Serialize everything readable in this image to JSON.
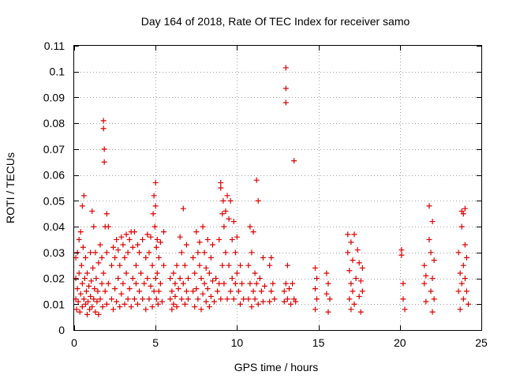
{
  "chart_data": {
    "type": "scatter",
    "title": "Day 164 of 2018, Rate Of TEC Index for receiver samo",
    "xlabel": "GPS time / hours",
    "ylabel": "ROTI / TECUs",
    "xlim": [
      0,
      25
    ],
    "ylim": [
      0,
      0.11
    ],
    "x_ticks": [
      "0",
      "5",
      "10",
      "15",
      "20",
      "25"
    ],
    "y_ticks": [
      "0",
      "0.01",
      "0.02",
      "0.03",
      "0.04",
      "0.05",
      "0.06",
      "0.07",
      "0.08",
      "0.09",
      "0.1",
      "0.11"
    ],
    "grid": true,
    "marker": "plus",
    "color": "#e00000",
    "series": [
      {
        "name": "",
        "points": [
          [
            0.1,
            0.012
          ],
          [
            0.1,
            0.02
          ],
          [
            0.1,
            0.028
          ],
          [
            0.15,
            0.008
          ],
          [
            0.2,
            0.016
          ],
          [
            0.2,
            0.03
          ],
          [
            0.25,
            0.011
          ],
          [
            0.3,
            0.022
          ],
          [
            0.3,
            0.035
          ],
          [
            0.35,
            0.007
          ],
          [
            0.4,
            0.014
          ],
          [
            0.4,
            0.038
          ],
          [
            0.45,
            0.025
          ],
          [
            0.5,
            0.009
          ],
          [
            0.5,
            0.018
          ],
          [
            0.5,
            0.048
          ],
          [
            0.55,
            0.032
          ],
          [
            0.6,
            0.012
          ],
          [
            0.6,
            0.052
          ],
          [
            0.65,
            0.02
          ],
          [
            0.7,
            0.01
          ],
          [
            0.7,
            0.028
          ],
          [
            0.75,
            0.015
          ],
          [
            0.8,
            0.006
          ],
          [
            0.8,
            0.022
          ],
          [
            0.85,
            0.011
          ],
          [
            0.9,
            0.017
          ],
          [
            0.95,
            0.008
          ],
          [
            1.0,
            0.013
          ],
          [
            1.0,
            0.03
          ],
          [
            1.05,
            0.019
          ],
          [
            1.1,
            0.009
          ],
          [
            1.1,
            0.046
          ],
          [
            1.15,
            0.024
          ],
          [
            1.2,
            0.012
          ],
          [
            1.2,
            0.04
          ],
          [
            1.25,
            0.016
          ],
          [
            1.3,
            0.007
          ],
          [
            1.3,
            0.03
          ],
          [
            1.35,
            0.02
          ],
          [
            1.4,
            0.011
          ],
          [
            1.45,
            0.015
          ],
          [
            1.5,
            0.006
          ],
          [
            1.5,
            0.026
          ],
          [
            1.6,
            0.012
          ],
          [
            1.6,
            0.033
          ],
          [
            1.7,
            0.018
          ],
          [
            1.7,
            0.028
          ],
          [
            1.75,
            0.009
          ],
          [
            1.8,
            0.078
          ],
          [
            1.8,
            0.081
          ],
          [
            1.85,
            0.07
          ],
          [
            1.85,
            0.065
          ],
          [
            1.8,
            0.022
          ],
          [
            1.9,
            0.015
          ],
          [
            1.9,
            0.04
          ],
          [
            2.0,
            0.01
          ],
          [
            2.0,
            0.045
          ],
          [
            2.0,
            0.03
          ],
          [
            2.1,
            0.018
          ],
          [
            2.1,
            0.04
          ],
          [
            2.3,
            0.012
          ],
          [
            2.3,
            0.025
          ],
          [
            2.4,
            0.008
          ],
          [
            2.4,
            0.032
          ],
          [
            2.5,
            0.016
          ],
          [
            2.5,
            0.028
          ],
          [
            2.6,
            0.011
          ],
          [
            2.6,
            0.035
          ],
          [
            2.7,
            0.02
          ],
          [
            2.7,
            0.031
          ],
          [
            2.8,
            0.009
          ],
          [
            2.8,
            0.025
          ],
          [
            2.9,
            0.014
          ],
          [
            2.9,
            0.036
          ],
          [
            3.0,
            0.018
          ],
          [
            3.0,
            0.033
          ],
          [
            3.1,
            0.01
          ],
          [
            3.1,
            0.028
          ],
          [
            3.2,
            0.022
          ],
          [
            3.2,
            0.037
          ],
          [
            3.3,
            0.012
          ],
          [
            3.3,
            0.03
          ],
          [
            3.4,
            0.016
          ],
          [
            3.4,
            0.035
          ],
          [
            3.5,
            0.009
          ],
          [
            3.5,
            0.038
          ],
          [
            3.6,
            0.02
          ],
          [
            3.6,
            0.032
          ],
          [
            3.7,
            0.012
          ],
          [
            3.7,
            0.038
          ],
          [
            3.8,
            0.025
          ],
          [
            3.8,
            0.018
          ],
          [
            3.9,
            0.01
          ],
          [
            3.9,
            0.033
          ],
          [
            4.0,
            0.015
          ],
          [
            4.0,
            0.03
          ],
          [
            4.1,
            0.022
          ],
          [
            4.2,
            0.012
          ],
          [
            4.2,
            0.035
          ],
          [
            4.3,
            0.018
          ],
          [
            4.4,
            0.008
          ],
          [
            4.4,
            0.028
          ],
          [
            4.5,
            0.02
          ],
          [
            4.5,
            0.037
          ],
          [
            4.6,
            0.012
          ],
          [
            4.6,
            0.03
          ],
          [
            4.7,
            0.017
          ],
          [
            4.7,
            0.036
          ],
          [
            4.8,
            0.009
          ],
          [
            4.8,
            0.025
          ],
          [
            4.85,
            0.045
          ],
          [
            4.9,
            0.052
          ],
          [
            4.9,
            0.015
          ],
          [
            4.95,
            0.04
          ],
          [
            5.0,
            0.057
          ],
          [
            5.0,
            0.02
          ],
          [
            5.0,
            0.048
          ],
          [
            5.05,
            0.012
          ],
          [
            5.05,
            0.032
          ],
          [
            5.1,
            0.022
          ],
          [
            5.1,
            0.035
          ],
          [
            5.15,
            0.01
          ],
          [
            5.2,
            0.028
          ],
          [
            5.2,
            0.015
          ],
          [
            5.3,
            0.018
          ],
          [
            5.3,
            0.034
          ],
          [
            5.4,
            0.011
          ],
          [
            5.5,
            0.025
          ],
          [
            5.5,
            0.038
          ],
          [
            5.9,
            0.012
          ],
          [
            5.9,
            0.02
          ],
          [
            6.0,
            0.008
          ],
          [
            6.0,
            0.015
          ],
          [
            6.1,
            0.022
          ],
          [
            6.1,
            0.01
          ],
          [
            6.2,
            0.018
          ],
          [
            6.2,
            0.013
          ],
          [
            6.3,
            0.025
          ],
          [
            6.3,
            0.009
          ],
          [
            6.4,
            0.016
          ],
          [
            6.5,
            0.02
          ],
          [
            6.5,
            0.036
          ],
          [
            6.6,
            0.012
          ],
          [
            6.6,
            0.03
          ],
          [
            6.7,
            0.047
          ],
          [
            6.7,
            0.018
          ],
          [
            6.8,
            0.025
          ],
          [
            6.8,
            0.01
          ],
          [
            6.9,
            0.015
          ],
          [
            6.9,
            0.033
          ],
          [
            7.0,
            0.02
          ],
          [
            7.0,
            0.012
          ],
          [
            7.3,
            0.015
          ],
          [
            7.3,
            0.028
          ],
          [
            7.4,
            0.009
          ],
          [
            7.4,
            0.022
          ],
          [
            7.5,
            0.038
          ],
          [
            7.5,
            0.016
          ],
          [
            7.6,
            0.03
          ],
          [
            7.6,
            0.012
          ],
          [
            7.7,
            0.025
          ],
          [
            7.7,
            0.034
          ],
          [
            7.8,
            0.008
          ],
          [
            7.8,
            0.02
          ],
          [
            7.9,
            0.014
          ],
          [
            7.9,
            0.04
          ],
          [
            8.0,
            0.018
          ],
          [
            8.0,
            0.03
          ],
          [
            8.1,
            0.011
          ],
          [
            8.1,
            0.024
          ],
          [
            8.2,
            0.035
          ],
          [
            8.2,
            0.016
          ],
          [
            8.3,
            0.022
          ],
          [
            8.3,
            0.009
          ],
          [
            8.4,
            0.028
          ],
          [
            8.4,
            0.013
          ],
          [
            8.5,
            0.019
          ],
          [
            8.5,
            0.033
          ],
          [
            8.6,
            0.011
          ],
          [
            8.7,
            0.02
          ],
          [
            8.8,
            0.015
          ],
          [
            8.9,
            0.018
          ],
          [
            8.9,
            0.035
          ],
          [
            9.0,
            0.012
          ],
          [
            9.0,
            0.057
          ],
          [
            9.0,
            0.055
          ],
          [
            9.1,
            0.025
          ],
          [
            9.1,
            0.045
          ],
          [
            9.15,
            0.05
          ],
          [
            9.2,
            0.018
          ],
          [
            9.2,
            0.04
          ],
          [
            9.3,
            0.03
          ],
          [
            9.3,
            0.046
          ],
          [
            9.4,
            0.012
          ],
          [
            9.4,
            0.052
          ],
          [
            9.5,
            0.025
          ],
          [
            9.5,
            0.043
          ],
          [
            9.6,
            0.015
          ],
          [
            9.6,
            0.05
          ],
          [
            9.7,
            0.035
          ],
          [
            9.7,
            0.02
          ],
          [
            9.8,
            0.042
          ],
          [
            9.8,
            0.012
          ],
          [
            9.9,
            0.03
          ],
          [
            9.9,
            0.018
          ],
          [
            10.0,
            0.022
          ],
          [
            10.0,
            0.036
          ],
          [
            10.1,
            0.015
          ],
          [
            10.2,
            0.025
          ],
          [
            10.2,
            0.01
          ],
          [
            10.3,
            0.018
          ],
          [
            10.4,
            0.012
          ],
          [
            10.7,
            0.012
          ],
          [
            10.7,
            0.025
          ],
          [
            10.8,
            0.04
          ],
          [
            10.8,
            0.018
          ],
          [
            10.9,
            0.03
          ],
          [
            10.9,
            0.009
          ],
          [
            11.0,
            0.038
          ],
          [
            11.0,
            0.015
          ],
          [
            11.1,
            0.022
          ],
          [
            11.1,
            0.012
          ],
          [
            11.2,
            0.058
          ],
          [
            11.2,
            0.018
          ],
          [
            11.3,
            0.05
          ],
          [
            11.3,
            0.01
          ],
          [
            11.4,
            0.02
          ],
          [
            11.5,
            0.015
          ],
          [
            11.6,
            0.028
          ],
          [
            11.6,
            0.011
          ],
          [
            11.7,
            0.017
          ],
          [
            12.0,
            0.025
          ],
          [
            12.0,
            0.011
          ],
          [
            12.1,
            0.028
          ],
          [
            12.1,
            0.015
          ],
          [
            12.2,
            0.018
          ],
          [
            12.3,
            0.012
          ],
          [
            12.9,
            0.011
          ],
          [
            12.9,
            0.015
          ],
          [
            13.0,
            0.1015
          ],
          [
            13.0,
            0.0935
          ],
          [
            13.0,
            0.088
          ],
          [
            13.0,
            0.018
          ],
          [
            13.1,
            0.025
          ],
          [
            13.1,
            0.012
          ],
          [
            13.2,
            0.016
          ],
          [
            13.3,
            0.01
          ],
          [
            13.4,
            0.018
          ],
          [
            13.5,
            0.0655
          ],
          [
            13.5,
            0.012
          ],
          [
            13.6,
            0.011
          ],
          [
            14.8,
            0.024
          ],
          [
            14.8,
            0.016
          ],
          [
            14.8,
            0.008
          ],
          [
            14.9,
            0.012
          ],
          [
            14.9,
            0.02
          ],
          [
            15.5,
            0.022
          ],
          [
            15.5,
            0.014
          ],
          [
            15.6,
            0.018
          ],
          [
            15.6,
            0.007
          ],
          [
            15.7,
            0.012
          ],
          [
            16.8,
            0.037
          ],
          [
            16.8,
            0.03
          ],
          [
            16.9,
            0.023
          ],
          [
            16.9,
            0.012
          ],
          [
            17.0,
            0.034
          ],
          [
            17.0,
            0.018
          ],
          [
            17.0,
            0.008
          ],
          [
            17.1,
            0.027
          ],
          [
            17.1,
            0.015
          ],
          [
            17.2,
            0.037
          ],
          [
            17.2,
            0.01
          ],
          [
            17.3,
            0.02
          ],
          [
            17.4,
            0.031
          ],
          [
            17.5,
            0.026
          ],
          [
            17.5,
            0.013
          ],
          [
            17.6,
            0.019
          ],
          [
            17.6,
            0.007
          ],
          [
            17.7,
            0.024
          ],
          [
            17.7,
            0.015
          ],
          [
            20.1,
            0.031
          ],
          [
            20.1,
            0.029
          ],
          [
            20.2,
            0.018
          ],
          [
            20.2,
            0.012
          ],
          [
            20.3,
            0.008
          ],
          [
            21.5,
            0.025
          ],
          [
            21.5,
            0.018
          ],
          [
            21.6,
            0.011
          ],
          [
            21.6,
            0.021
          ],
          [
            21.8,
            0.048
          ],
          [
            21.8,
            0.035
          ],
          [
            21.9,
            0.03
          ],
          [
            21.9,
            0.015
          ],
          [
            22.0,
            0.042
          ],
          [
            22.0,
            0.02
          ],
          [
            22.0,
            0.007
          ],
          [
            22.1,
            0.027
          ],
          [
            22.1,
            0.012
          ],
          [
            23.6,
            0.03
          ],
          [
            23.6,
            0.015
          ],
          [
            23.7,
            0.022
          ],
          [
            23.7,
            0.008
          ],
          [
            23.8,
            0.046
          ],
          [
            23.8,
            0.04
          ],
          [
            23.8,
            0.018
          ],
          [
            23.9,
            0.045
          ],
          [
            23.9,
            0.012
          ],
          [
            23.9,
            0.025
          ],
          [
            24.0,
            0.033
          ],
          [
            24.0,
            0.02
          ],
          [
            24.0,
            0.047
          ],
          [
            24.1,
            0.015
          ],
          [
            24.1,
            0.028
          ],
          [
            24.2,
            0.01
          ]
        ]
      }
    ]
  }
}
